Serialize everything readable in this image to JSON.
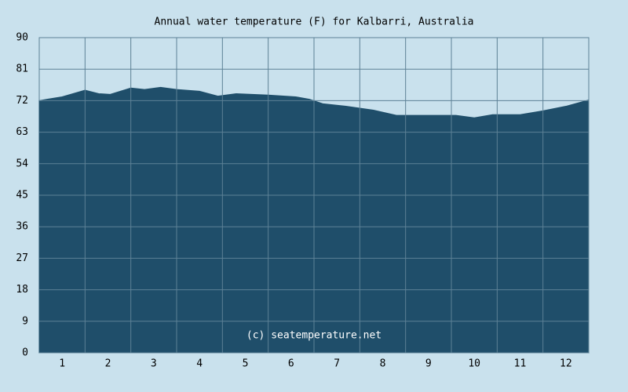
{
  "chart_data": {
    "type": "area",
    "title": "Annual water temperature (F) for Kalbarri, Australia",
    "annotation": "(c) seatemperature.net",
    "x": [
      0.5,
      0.67,
      1.0,
      1.5,
      1.8,
      2.05,
      2.5,
      2.8,
      3.15,
      3.5,
      4.0,
      4.4,
      4.8,
      5.5,
      6.1,
      6.4,
      6.7,
      7.2,
      7.8,
      8.3,
      8.9,
      9.6,
      10.0,
      10.4,
      11.0,
      11.5,
      12.0,
      12.5
    ],
    "values": [
      72.0,
      72.4,
      73.1,
      75.0,
      74.0,
      73.8,
      75.6,
      75.2,
      75.8,
      75.2,
      74.7,
      73.3,
      74.0,
      73.6,
      73.1,
      72.4,
      71.1,
      70.4,
      69.3,
      67.8,
      67.8,
      67.8,
      67.1,
      68.0,
      68.0,
      69.1,
      70.4,
      72.2
    ],
    "color": "#1f4e6a",
    "xlim": [
      0.5,
      12.5
    ],
    "xticks": [
      1,
      2,
      3,
      4,
      5,
      6,
      7,
      8,
      9,
      10,
      11,
      12
    ],
    "ylim": [
      0,
      90
    ],
    "yticks": [
      0,
      9,
      18,
      27,
      36,
      45,
      54,
      63,
      72,
      81,
      90
    ],
    "grid": true
  }
}
